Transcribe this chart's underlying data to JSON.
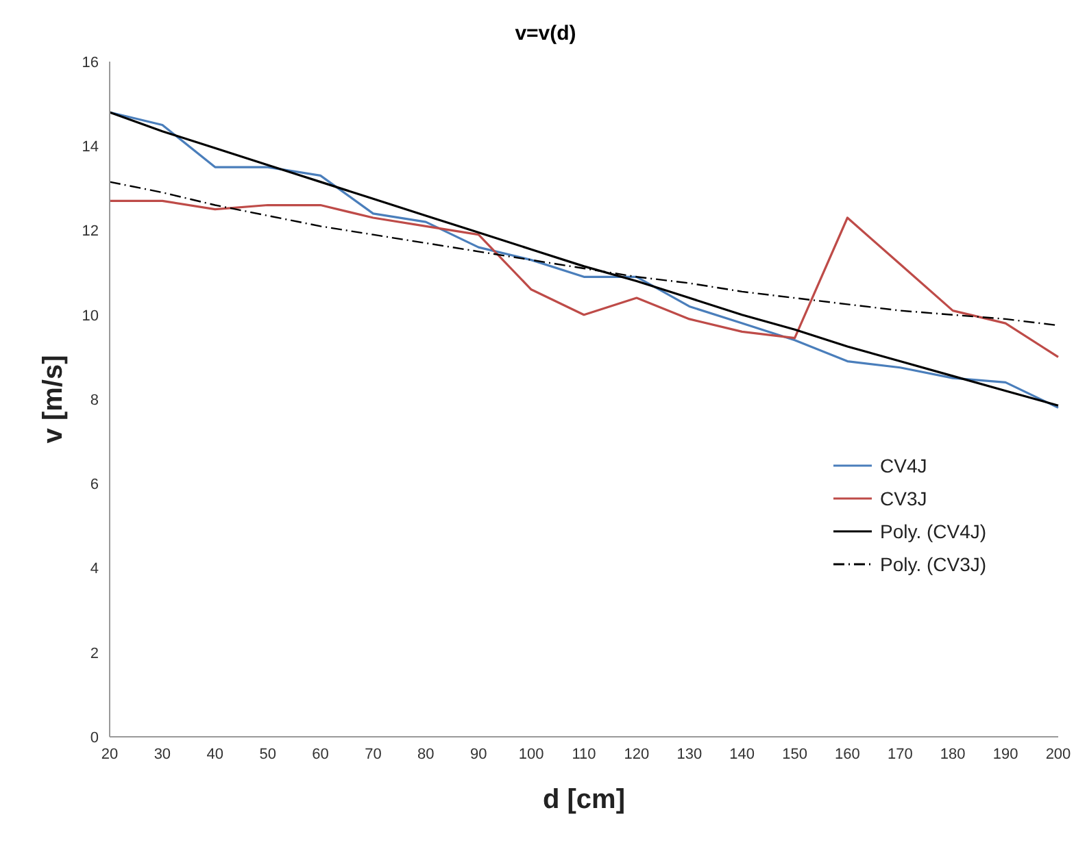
{
  "chart_data": {
    "type": "line",
    "title": "v=v(d)",
    "xlabel": "d [cm]",
    "ylabel": "v [m/s]",
    "categories": [
      "20",
      "30",
      "40",
      "50",
      "60",
      "70",
      "80",
      "90",
      "100",
      "110",
      "120",
      "130",
      "140",
      "150",
      "160",
      "170",
      "180",
      "190",
      "200"
    ],
    "series": [
      {
        "name": "CV4J",
        "color": "#4a7ebb",
        "line_style": "solid",
        "values": [
          14.8,
          14.5,
          13.5,
          13.5,
          13.3,
          12.4,
          12.2,
          11.6,
          11.3,
          10.9,
          10.9,
          10.2,
          9.8,
          9.4,
          8.9,
          8.75,
          8.5,
          8.4,
          7.8
        ]
      },
      {
        "name": "CV3J",
        "color": "#be4b48",
        "line_style": "solid",
        "values": [
          12.7,
          12.7,
          12.5,
          12.6,
          12.6,
          12.3,
          12.1,
          11.9,
          10.6,
          10.0,
          10.4,
          9.9,
          9.6,
          9.45,
          12.3,
          11.2,
          10.1,
          9.8,
          9.0
        ]
      },
      {
        "name": "Poly. (CV4J)",
        "color": "#000000",
        "line_style": "solid",
        "values": [
          14.8,
          14.35,
          13.95,
          13.55,
          13.15,
          12.75,
          12.35,
          11.95,
          11.55,
          11.15,
          10.8,
          10.4,
          10.0,
          9.65,
          9.25,
          8.9,
          8.55,
          8.2,
          7.85
        ]
      },
      {
        "name": "Poly. (CV3J)",
        "color": "#000000",
        "line_style": "dashed",
        "values": [
          13.15,
          12.9,
          12.6,
          12.35,
          12.1,
          11.9,
          11.7,
          11.5,
          11.3,
          11.1,
          10.9,
          10.75,
          10.55,
          10.4,
          10.25,
          10.1,
          10.0,
          9.9,
          9.75
        ]
      }
    ],
    "ylim": [
      0,
      16
    ],
    "yticks": [
      0,
      2,
      4,
      6,
      8,
      10,
      12,
      14,
      16
    ],
    "grid": false,
    "legend": "right",
    "marker": "none"
  }
}
